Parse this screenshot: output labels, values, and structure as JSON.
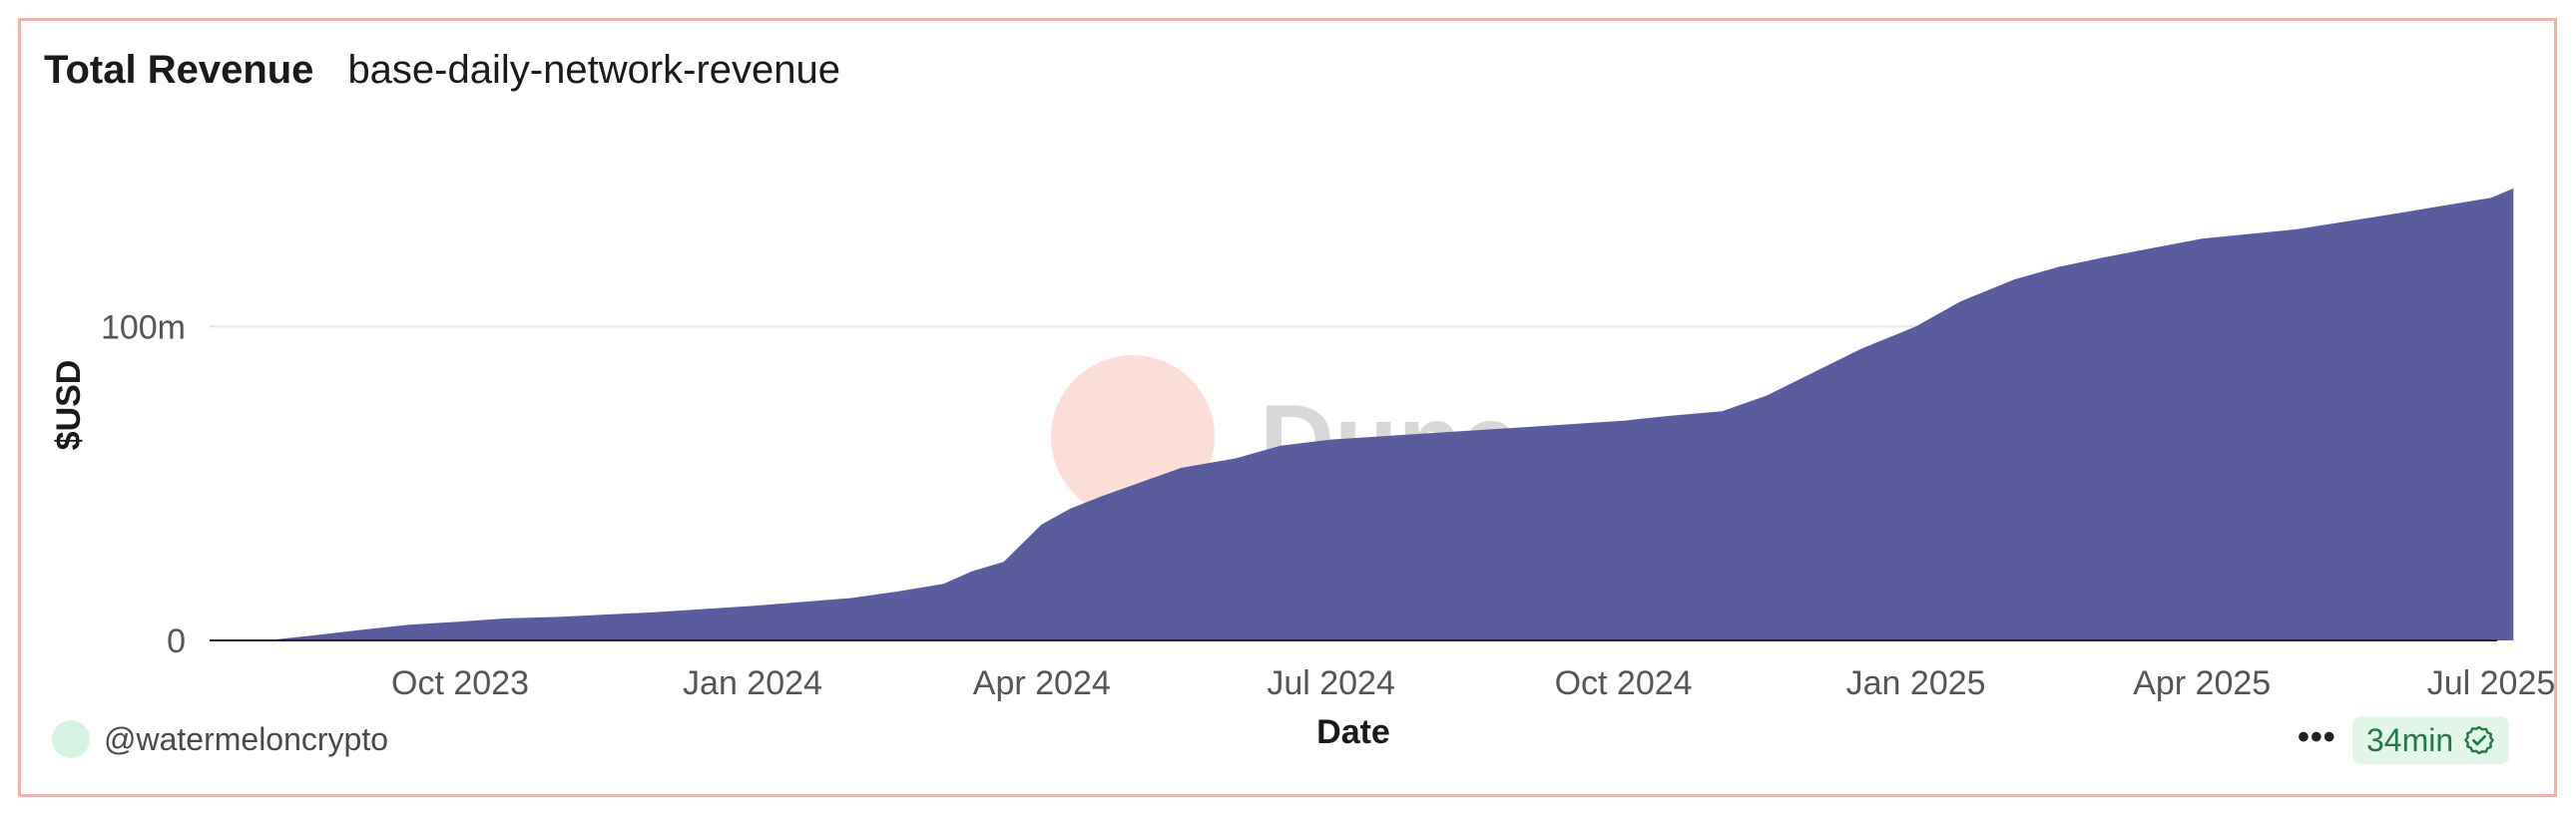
{
  "header": {
    "title": "Total Revenue",
    "subtitle": "base-daily-network-revenue"
  },
  "footer": {
    "username": "@watermeloncrypto",
    "more_label": "•••",
    "freshness": "34min"
  },
  "watermark": {
    "text": "Dune"
  },
  "colors": {
    "area": "#55579a",
    "border": "#f4b1a6",
    "badge_bg": "#e3f6ea",
    "badge_text": "#1f7a44"
  },
  "chart_data": {
    "type": "area",
    "xlabel": "Date",
    "ylabel": "$USD",
    "x_ticks": [
      "Oct 2023",
      "Jan 2024",
      "Apr 2024",
      "Jul 2024",
      "Oct 2024",
      "Jan 2025",
      "Apr 2025",
      "Jul 2025"
    ],
    "y_ticks": [
      "0",
      "100m"
    ],
    "ylim": [
      0,
      150
    ],
    "y_unit": "millions USD",
    "grid": "horizontal",
    "series": [
      {
        "x": [
          "2023-08-01",
          "2023-08-15",
          "2023-09-01",
          "2023-09-15",
          "2023-10-01",
          "2023-10-15",
          "2023-11-01",
          "2023-12-01",
          "2024-01-01",
          "2024-02-01",
          "2024-02-15",
          "2024-03-01",
          "2024-03-10",
          "2024-03-20",
          "2024-03-25",
          "2024-04-01",
          "2024-04-10",
          "2024-04-20",
          "2024-05-01",
          "2024-05-15",
          "2024-06-01",
          "2024-06-15",
          "2024-07-01",
          "2024-08-01",
          "2024-09-01",
          "2024-10-01",
          "2024-10-15",
          "2024-11-01",
          "2024-11-15",
          "2024-12-01",
          "2024-12-15",
          "2025-01-01",
          "2025-01-15",
          "2025-02-01",
          "2025-02-15",
          "2025-03-01",
          "2025-04-01",
          "2025-05-01",
          "2025-06-01",
          "2025-07-01",
          "2025-07-08"
        ],
        "values": [
          0,
          1.5,
          3.5,
          5,
          6,
          7,
          7.5,
          9,
          11,
          13.5,
          15.5,
          18,
          22,
          25,
          30,
          37,
          42,
          46,
          50,
          55,
          58,
          62,
          64,
          66,
          68,
          70,
          71.5,
          73,
          78,
          86,
          93,
          100,
          108,
          115,
          119,
          122,
          128,
          131,
          136,
          141,
          144
        ]
      }
    ]
  }
}
